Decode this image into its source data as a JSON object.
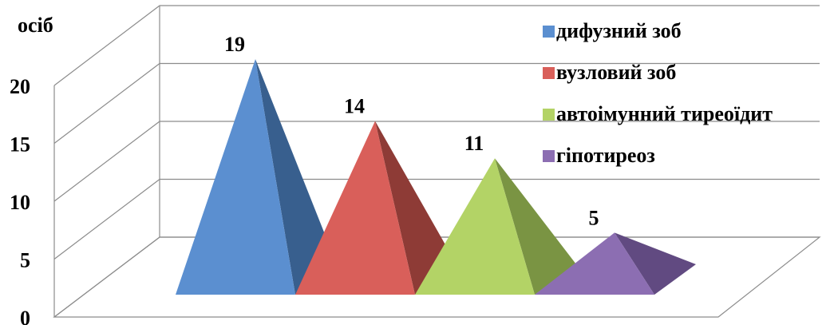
{
  "chart_data": {
    "type": "bar",
    "bar_shape": "3d-pyramid",
    "ylabel": "осіб",
    "ylim": [
      0,
      20
    ],
    "yticks": [
      0,
      5,
      10,
      15,
      20
    ],
    "grid": true,
    "legend_position": "right",
    "categories": [
      "дифузний зоб",
      "вузловий зоб",
      "автоімунний тиреоїдит",
      "гіпотиреоз"
    ],
    "values": [
      19,
      14,
      11,
      5
    ],
    "data_labels": [
      "19",
      "14",
      "11",
      "5"
    ],
    "colors": {
      "front": [
        "#5b8fd0",
        "#d95f5a",
        "#b3d366",
        "#8c6eb2"
      ],
      "side": [
        "#385f8e",
        "#8e3b36",
        "#7a9443",
        "#614a81"
      ]
    }
  }
}
